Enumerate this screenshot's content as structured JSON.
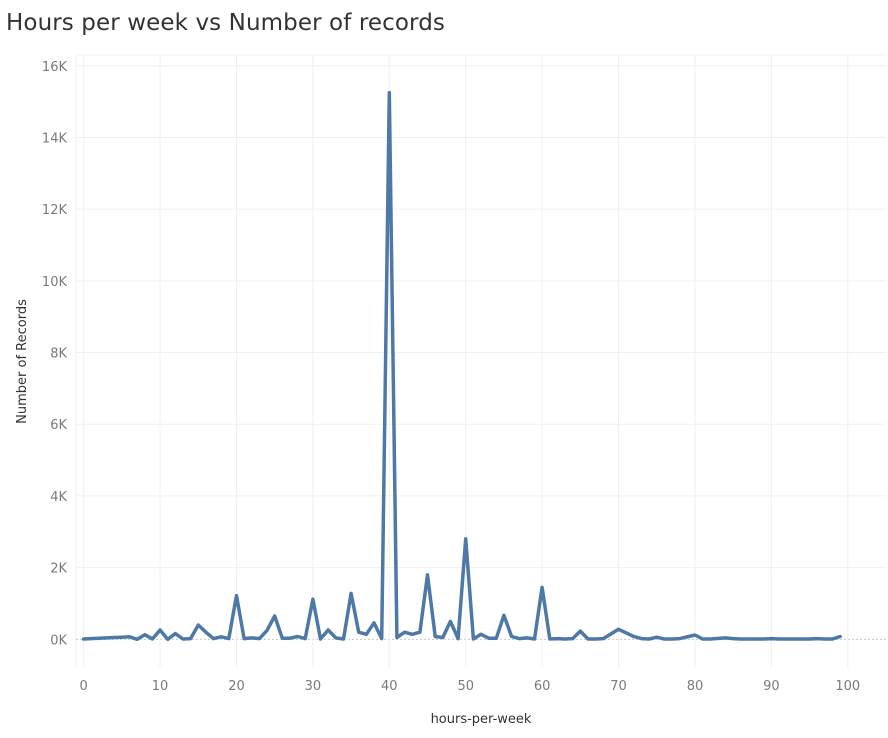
{
  "chart_data": {
    "type": "line",
    "title": "Hours per week vs Number of records",
    "xlabel": "hours-per-week",
    "ylabel": "Number of Records",
    "xlim": [
      -1,
      105
    ],
    "ylim": [
      -800,
      16300
    ],
    "x_ticks": [
      0,
      10,
      20,
      30,
      40,
      50,
      60,
      70,
      80,
      90,
      100
    ],
    "x_tick_labels": [
      "0",
      "10",
      "20",
      "30",
      "40",
      "50",
      "60",
      "70",
      "80",
      "90",
      "100"
    ],
    "y_ticks": [
      0,
      2000,
      4000,
      6000,
      8000,
      10000,
      12000,
      14000,
      16000
    ],
    "y_tick_labels": [
      "0K",
      "2K",
      "4K",
      "6K",
      "8K",
      "10K",
      "12K",
      "14K",
      "16K"
    ],
    "grid": true,
    "series": [
      {
        "color": "#4e79a7",
        "x": [
          0,
          1,
          2,
          3,
          4,
          5,
          6,
          7,
          8,
          9,
          10,
          11,
          12,
          13,
          14,
          15,
          16,
          17,
          18,
          19,
          20,
          21,
          22,
          23,
          24,
          25,
          26,
          27,
          28,
          29,
          30,
          31,
          32,
          33,
          34,
          35,
          36,
          37,
          38,
          39,
          40,
          41,
          42,
          43,
          44,
          45,
          46,
          47,
          48,
          49,
          50,
          51,
          52,
          53,
          54,
          55,
          56,
          57,
          58,
          59,
          60,
          61,
          62,
          63,
          64,
          65,
          66,
          67,
          68,
          70,
          72,
          73,
          74,
          75,
          76,
          77,
          78,
          80,
          81,
          82,
          84,
          85,
          86,
          87,
          88,
          89,
          90,
          91,
          92,
          94,
          95,
          96,
          97,
          98,
          99
        ],
        "y": [
          10,
          20,
          30,
          40,
          50,
          60,
          70,
          0,
          130,
          10,
          260,
          0,
          160,
          10,
          20,
          400,
          200,
          20,
          70,
          20,
          1220,
          20,
          40,
          20,
          250,
          650,
          30,
          30,
          80,
          20,
          1120,
          10,
          260,
          40,
          10,
          1280,
          200,
          140,
          460,
          20,
          15250,
          50,
          200,
          140,
          200,
          1800,
          80,
          50,
          500,
          20,
          2800,
          10,
          140,
          30,
          30,
          670,
          80,
          20,
          40,
          10,
          1450,
          10,
          20,
          10,
          20,
          230,
          10,
          10,
          20,
          280,
          80,
          20,
          10,
          60,
          10,
          10,
          20,
          120,
          10,
          10,
          40,
          20,
          10,
          10,
          10,
          10,
          20,
          10,
          10,
          10,
          10,
          20,
          10,
          10,
          80
        ]
      }
    ]
  }
}
